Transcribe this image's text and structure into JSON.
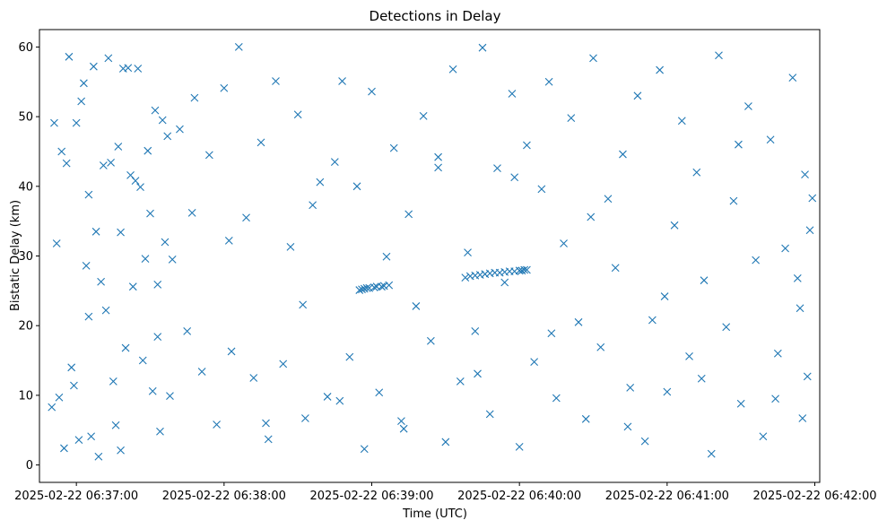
{
  "chart_data": {
    "type": "scatter",
    "title": "Detections in Delay",
    "xlabel": "Time (UTC)",
    "ylabel": "Bistatic Delay (km)",
    "marker": "x",
    "color": "#1f77b4",
    "grid": false,
    "legend": "none",
    "x_unit": "datetime",
    "xlim": [
      "2025-02-22 06:36:45",
      "2025-02-22 06:42:02"
    ],
    "ylim": [
      -2.5,
      62.5
    ],
    "x_ticks": [
      "2025-02-22 06:37:00",
      "2025-02-22 06:38:00",
      "2025-02-22 06:39:00",
      "2025-02-22 06:40:00",
      "2025-02-22 06:41:00",
      "2025-02-22 06:42:00"
    ],
    "y_ticks": [
      "0",
      "10",
      "20",
      "30",
      "40",
      "50",
      "60"
    ],
    "series": [
      {
        "x": [
          "2025-02-22 06:36:50",
          "2025-02-22 06:36:51",
          "2025-02-22 06:36:52",
          "2025-02-22 06:36:53",
          "2025-02-22 06:36:54",
          "2025-02-22 06:36:55",
          "2025-02-22 06:36:56",
          "2025-02-22 06:36:57",
          "2025-02-22 06:36:58",
          "2025-02-22 06:36:59",
          "2025-02-22 06:37:00",
          "2025-02-22 06:37:01",
          "2025-02-22 06:37:02",
          "2025-02-22 06:37:03",
          "2025-02-22 06:37:04",
          "2025-02-22 06:37:05",
          "2025-02-22 06:37:06",
          "2025-02-22 06:37:07",
          "2025-02-22 06:37:08",
          "2025-02-22 06:37:09",
          "2025-02-22 06:37:10",
          "2025-02-22 06:37:11",
          "2025-02-22 06:37:12",
          "2025-02-22 06:37:13",
          "2025-02-22 06:37:14",
          "2025-02-22 06:37:15",
          "2025-02-22 06:37:16",
          "2025-02-22 06:37:17",
          "2025-02-22 06:37:18",
          "2025-02-22 06:37:19",
          "2025-02-22 06:37:20",
          "2025-02-22 06:37:21",
          "2025-02-22 06:37:22",
          "2025-02-22 06:37:23",
          "2025-02-22 06:37:24",
          "2025-02-22 06:37:25",
          "2025-02-22 06:37:26",
          "2025-02-22 06:37:27",
          "2025-02-22 06:37:28",
          "2025-02-22 06:37:29",
          "2025-02-22 06:37:30",
          "2025-02-22 06:37:31",
          "2025-02-22 06:37:32",
          "2025-02-22 06:37:33",
          "2025-02-22 06:37:34",
          "2025-02-22 06:37:35",
          "2025-02-22 06:37:36",
          "2025-02-22 06:37:37",
          "2025-02-22 06:37:38",
          "2025-02-22 06:37:39",
          "2025-02-22 06:37:42",
          "2025-02-22 06:37:45",
          "2025-02-22 06:37:48",
          "2025-02-22 06:37:51",
          "2025-02-22 06:37:54",
          "2025-02-22 06:37:57",
          "2025-02-22 06:38:00",
          "2025-02-22 06:38:03",
          "2025-02-22 06:38:06",
          "2025-02-22 06:38:09",
          "2025-02-22 06:38:12",
          "2025-02-22 06:38:15",
          "2025-02-22 06:38:18",
          "2025-02-22 06:38:21",
          "2025-02-22 06:38:24",
          "2025-02-22 06:38:27",
          "2025-02-22 06:38:30",
          "2025-02-22 06:38:33",
          "2025-02-22 06:38:36",
          "2025-02-22 06:38:39",
          "2025-02-22 06:38:42",
          "2025-02-22 06:38:45",
          "2025-02-22 06:38:48",
          "2025-02-22 06:38:51",
          "2025-02-22 06:38:54",
          "2025-02-22 06:38:57",
          "2025-02-22 06:39:00",
          "2025-02-22 06:39:03",
          "2025-02-22 06:39:06",
          "2025-02-22 06:39:09",
          "2025-02-22 06:39:12",
          "2025-02-22 06:39:15",
          "2025-02-22 06:39:18",
          "2025-02-22 06:39:21",
          "2025-02-22 06:39:24",
          "2025-02-22 06:39:27",
          "2025-02-22 06:39:30",
          "2025-02-22 06:39:33",
          "2025-02-22 06:39:36",
          "2025-02-22 06:39:39",
          "2025-02-22 06:39:42",
          "2025-02-22 06:39:45",
          "2025-02-22 06:39:48",
          "2025-02-22 06:39:51",
          "2025-02-22 06:39:54",
          "2025-02-22 06:39:57",
          "2025-02-22 06:40:00",
          "2025-02-22 06:40:03",
          "2025-02-22 06:40:06",
          "2025-02-22 06:40:09",
          "2025-02-22 06:40:12",
          "2025-02-22 06:40:15",
          "2025-02-22 06:40:18",
          "2025-02-22 06:40:21",
          "2025-02-22 06:40:24",
          "2025-02-22 06:40:27",
          "2025-02-22 06:40:30",
          "2025-02-22 06:40:33",
          "2025-02-22 06:40:36",
          "2025-02-22 06:40:39",
          "2025-02-22 06:40:42",
          "2025-02-22 06:40:45",
          "2025-02-22 06:40:48",
          "2025-02-22 06:40:51",
          "2025-02-22 06:40:54",
          "2025-02-22 06:40:57",
          "2025-02-22 06:41:00",
          "2025-02-22 06:41:03",
          "2025-02-22 06:41:06",
          "2025-02-22 06:41:09",
          "2025-02-22 06:41:12",
          "2025-02-22 06:41:15",
          "2025-02-22 06:41:18",
          "2025-02-22 06:41:21",
          "2025-02-22 06:41:24",
          "2025-02-22 06:41:27",
          "2025-02-22 06:41:30",
          "2025-02-22 06:41:33",
          "2025-02-22 06:41:36",
          "2025-02-22 06:41:39",
          "2025-02-22 06:41:42",
          "2025-02-22 06:41:45",
          "2025-02-22 06:41:48",
          "2025-02-22 06:41:51",
          "2025-02-22 06:41:54",
          "2025-02-22 06:41:55",
          "2025-02-22 06:41:56",
          "2025-02-22 06:41:57",
          "2025-02-22 06:41:58",
          "2025-02-22 06:41:59",
          "2025-02-22 06:38:55",
          "2025-02-22 06:38:56",
          "2025-02-22 06:38:57",
          "2025-02-22 06:38:58",
          "2025-02-22 06:38:59",
          "2025-02-22 06:39:01",
          "2025-02-22 06:39:02",
          "2025-02-22 06:39:04",
          "2025-02-22 06:39:05",
          "2025-02-22 06:39:07",
          "2025-02-22 06:39:38",
          "2025-02-22 06:39:40",
          "2025-02-22 06:39:42",
          "2025-02-22 06:39:44",
          "2025-02-22 06:39:46",
          "2025-02-22 06:39:48",
          "2025-02-22 06:39:50",
          "2025-02-22 06:39:52",
          "2025-02-22 06:39:54",
          "2025-02-22 06:39:56",
          "2025-02-22 06:39:58",
          "2025-02-22 06:40:00",
          "2025-02-22 06:40:01",
          "2025-02-22 06:40:02",
          "2025-02-22 06:40:03",
          "2025-02-22 06:37:05",
          "2025-02-22 06:37:18",
          "2025-02-22 06:37:33",
          "2025-02-22 06:37:47",
          "2025-02-22 06:38:02",
          "2025-02-22 06:38:17",
          "2025-02-22 06:38:32",
          "2025-02-22 06:38:47",
          "2025-02-22 06:39:13",
          "2025-02-22 06:39:27",
          "2025-02-22 06:39:43",
          "2025-02-22 06:39:58",
          "2025-02-22 06:40:13",
          "2025-02-22 06:40:29",
          "2025-02-22 06:40:44",
          "2025-02-22 06:40:59",
          "2025-02-22 06:41:14",
          "2025-02-22 06:41:29",
          "2025-02-22 06:41:44",
          "2025-02-22 06:41:53"
        ],
        "y": [
          8.3,
          49.1,
          31.8,
          9.7,
          45.0,
          2.4,
          43.3,
          58.6,
          14.0,
          11.4,
          49.1,
          3.6,
          52.2,
          54.8,
          28.6,
          38.8,
          4.1,
          57.2,
          33.5,
          1.2,
          26.3,
          43.0,
          22.2,
          58.4,
          43.4,
          12.0,
          5.7,
          45.7,
          33.4,
          56.9,
          16.8,
          57.0,
          41.6,
          25.6,
          40.8,
          56.9,
          39.9,
          15.0,
          29.6,
          45.1,
          36.1,
          10.6,
          50.9,
          18.4,
          4.8,
          49.5,
          32.0,
          47.2,
          9.9,
          29.5,
          48.2,
          19.2,
          52.7,
          13.4,
          44.5,
          5.8,
          54.1,
          16.3,
          60.0,
          35.5,
          12.5,
          46.3,
          3.7,
          55.1,
          14.5,
          31.3,
          50.3,
          6.7,
          37.3,
          40.6,
          9.8,
          43.5,
          55.1,
          15.5,
          40.0,
          2.3,
          53.6,
          10.4,
          29.9,
          45.5,
          6.3,
          36.0,
          22.8,
          50.1,
          17.8,
          42.7,
          3.3,
          56.8,
          12.0,
          30.5,
          19.2,
          59.9,
          7.3,
          42.6,
          26.2,
          53.3,
          2.6,
          45.9,
          14.8,
          39.6,
          55.0,
          9.6,
          31.8,
          49.8,
          20.5,
          6.6,
          58.4,
          16.9,
          38.2,
          28.3,
          44.6,
          11.1,
          53.0,
          3.4,
          20.8,
          56.7,
          10.5,
          34.4,
          49.4,
          15.6,
          42.0,
          26.5,
          1.6,
          58.8,
          19.8,
          37.9,
          8.8,
          51.5,
          29.4,
          4.1,
          46.7,
          16.0,
          31.1,
          55.6,
          22.5,
          6.7,
          41.7,
          12.7,
          33.7,
          38.3,
          25.1,
          25.2,
          25.3,
          25.4,
          25.4,
          25.5,
          25.6,
          25.6,
          25.7,
          25.8,
          26.9,
          27.1,
          27.2,
          27.3,
          27.4,
          27.5,
          27.6,
          27.6,
          27.7,
          27.8,
          27.8,
          27.9,
          27.9,
          28.0,
          28.0,
          21.3,
          2.1,
          25.9,
          36.2,
          32.2,
          6.0,
          23.0,
          9.2,
          5.2,
          44.2,
          13.1,
          41.3,
          18.9,
          35.6,
          5.5,
          24.2,
          12.4,
          46.0,
          9.5,
          26.8
        ]
      }
    ]
  }
}
